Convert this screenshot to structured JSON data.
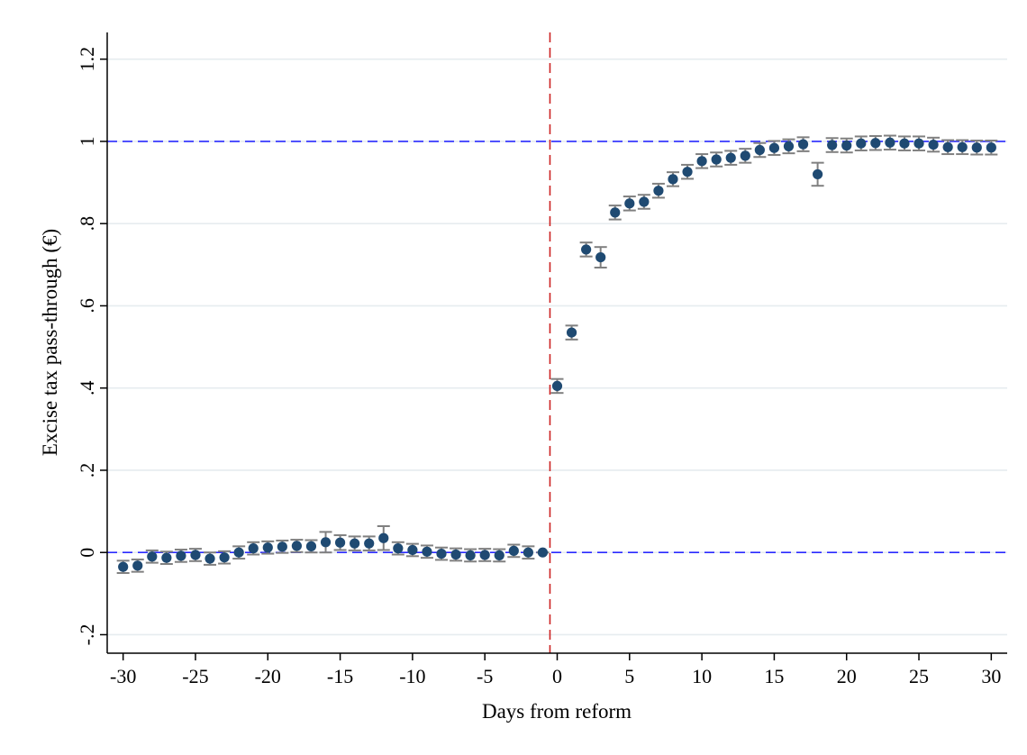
{
  "chart_data": {
    "type": "scatter",
    "xlabel": "Days from reform",
    "ylabel": "Excise tax pass-through (€)",
    "xlim": [
      -31.1,
      31.1
    ],
    "ylim": [
      -0.245,
      1.265
    ],
    "xticks": [
      -30,
      -25,
      -20,
      -15,
      -10,
      -5,
      0,
      5,
      10,
      15,
      20,
      25,
      30
    ],
    "xtick_labels": [
      "-30",
      "-25",
      "-20",
      "-15",
      "-10",
      "-5",
      "0",
      "5",
      "10",
      "15",
      "20",
      "25",
      "30"
    ],
    "yticks": [
      -0.2,
      0,
      0.2,
      0.4,
      0.6,
      0.8,
      1,
      1.2
    ],
    "ytick_labels": [
      "-.2",
      "0",
      ".2",
      ".4",
      ".6",
      ".8",
      "1",
      "1.2"
    ],
    "grid": "horizontal",
    "reference_lines": [
      {
        "orientation": "horizontal",
        "value": 1,
        "style": "dashed",
        "color": "#2b2bff"
      },
      {
        "orientation": "horizontal",
        "value": 0,
        "style": "dashed",
        "color": "#2b2bff"
      },
      {
        "orientation": "vertical",
        "value": -0.5,
        "style": "dashed",
        "color": "#cc2222"
      }
    ],
    "marker_color": "#1f4a72",
    "errorbar_color": "#808080",
    "points": [
      {
        "x": -30,
        "y": -0.035,
        "lo": -0.05,
        "hi": -0.02
      },
      {
        "x": -29,
        "y": -0.032,
        "lo": -0.047,
        "hi": -0.017
      },
      {
        "x": -28,
        "y": -0.01,
        "lo": -0.025,
        "hi": 0.005
      },
      {
        "x": -27,
        "y": -0.013,
        "lo": -0.028,
        "hi": 0.002
      },
      {
        "x": -26,
        "y": -0.008,
        "lo": -0.023,
        "hi": 0.007
      },
      {
        "x": -25,
        "y": -0.006,
        "lo": -0.021,
        "hi": 0.009
      },
      {
        "x": -24,
        "y": -0.015,
        "lo": -0.03,
        "hi": 0.0
      },
      {
        "x": -23,
        "y": -0.012,
        "lo": -0.027,
        "hi": 0.003
      },
      {
        "x": -22,
        "y": 0.0,
        "lo": -0.015,
        "hi": 0.015
      },
      {
        "x": -21,
        "y": 0.01,
        "lo": -0.005,
        "hi": 0.025
      },
      {
        "x": -20,
        "y": 0.012,
        "lo": -0.003,
        "hi": 0.027
      },
      {
        "x": -19,
        "y": 0.014,
        "lo": -0.001,
        "hi": 0.029
      },
      {
        "x": -18,
        "y": 0.016,
        "lo": 0.001,
        "hi": 0.031
      },
      {
        "x": -17,
        "y": 0.015,
        "lo": 0.0,
        "hi": 0.03
      },
      {
        "x": -16,
        "y": 0.025,
        "lo": 0.0,
        "hi": 0.05
      },
      {
        "x": -15,
        "y": 0.024,
        "lo": 0.006,
        "hi": 0.042
      },
      {
        "x": -14,
        "y": 0.022,
        "lo": 0.005,
        "hi": 0.039
      },
      {
        "x": -13,
        "y": 0.022,
        "lo": 0.005,
        "hi": 0.039
      },
      {
        "x": -12,
        "y": 0.035,
        "lo": 0.006,
        "hi": 0.064
      },
      {
        "x": -11,
        "y": 0.01,
        "lo": -0.005,
        "hi": 0.025
      },
      {
        "x": -10,
        "y": 0.006,
        "lo": -0.009,
        "hi": 0.021
      },
      {
        "x": -9,
        "y": 0.002,
        "lo": -0.013,
        "hi": 0.017
      },
      {
        "x": -8,
        "y": -0.003,
        "lo": -0.018,
        "hi": 0.012
      },
      {
        "x": -7,
        "y": -0.005,
        "lo": -0.02,
        "hi": 0.01
      },
      {
        "x": -6,
        "y": -0.007,
        "lo": -0.022,
        "hi": 0.008
      },
      {
        "x": -5,
        "y": -0.006,
        "lo": -0.021,
        "hi": 0.009
      },
      {
        "x": -4,
        "y": -0.007,
        "lo": -0.022,
        "hi": 0.008
      },
      {
        "x": -3,
        "y": 0.004,
        "lo": -0.011,
        "hi": 0.019
      },
      {
        "x": -2,
        "y": 0.0,
        "lo": -0.015,
        "hi": 0.015
      },
      {
        "x": -1,
        "y": 0.0,
        "lo": 0.0,
        "hi": 0.0
      },
      {
        "x": 0,
        "y": 0.405,
        "lo": 0.388,
        "hi": 0.422
      },
      {
        "x": 1,
        "y": 0.535,
        "lo": 0.518,
        "hi": 0.552
      },
      {
        "x": 2,
        "y": 0.737,
        "lo": 0.72,
        "hi": 0.754
      },
      {
        "x": 3,
        "y": 0.718,
        "lo": 0.693,
        "hi": 0.743
      },
      {
        "x": 4,
        "y": 0.827,
        "lo": 0.81,
        "hi": 0.844
      },
      {
        "x": 5,
        "y": 0.849,
        "lo": 0.832,
        "hi": 0.866
      },
      {
        "x": 6,
        "y": 0.853,
        "lo": 0.836,
        "hi": 0.87
      },
      {
        "x": 7,
        "y": 0.88,
        "lo": 0.863,
        "hi": 0.897
      },
      {
        "x": 8,
        "y": 0.908,
        "lo": 0.891,
        "hi": 0.925
      },
      {
        "x": 9,
        "y": 0.926,
        "lo": 0.909,
        "hi": 0.943
      },
      {
        "x": 10,
        "y": 0.952,
        "lo": 0.935,
        "hi": 0.969
      },
      {
        "x": 11,
        "y": 0.956,
        "lo": 0.939,
        "hi": 0.973
      },
      {
        "x": 12,
        "y": 0.96,
        "lo": 0.943,
        "hi": 0.977
      },
      {
        "x": 13,
        "y": 0.965,
        "lo": 0.948,
        "hi": 0.982
      },
      {
        "x": 14,
        "y": 0.979,
        "lo": 0.962,
        "hi": 0.996
      },
      {
        "x": 15,
        "y": 0.984,
        "lo": 0.967,
        "hi": 1.001
      },
      {
        "x": 16,
        "y": 0.988,
        "lo": 0.971,
        "hi": 1.005
      },
      {
        "x": 17,
        "y": 0.993,
        "lo": 0.976,
        "hi": 1.01
      },
      {
        "x": 18,
        "y": 0.92,
        "lo": 0.892,
        "hi": 0.948
      },
      {
        "x": 19,
        "y": 0.991,
        "lo": 0.974,
        "hi": 1.008
      },
      {
        "x": 20,
        "y": 0.99,
        "lo": 0.973,
        "hi": 1.007
      },
      {
        "x": 21,
        "y": 0.995,
        "lo": 0.978,
        "hi": 1.012
      },
      {
        "x": 22,
        "y": 0.996,
        "lo": 0.979,
        "hi": 1.013
      },
      {
        "x": 23,
        "y": 0.997,
        "lo": 0.98,
        "hi": 1.014
      },
      {
        "x": 24,
        "y": 0.995,
        "lo": 0.978,
        "hi": 1.012
      },
      {
        "x": 25,
        "y": 0.995,
        "lo": 0.978,
        "hi": 1.012
      },
      {
        "x": 26,
        "y": 0.992,
        "lo": 0.975,
        "hi": 1.009
      },
      {
        "x": 27,
        "y": 0.986,
        "lo": 0.969,
        "hi": 1.003
      },
      {
        "x": 28,
        "y": 0.986,
        "lo": 0.969,
        "hi": 1.003
      },
      {
        "x": 29,
        "y": 0.985,
        "lo": 0.968,
        "hi": 1.002
      },
      {
        "x": 30,
        "y": 0.985,
        "lo": 0.968,
        "hi": 1.002
      }
    ]
  }
}
